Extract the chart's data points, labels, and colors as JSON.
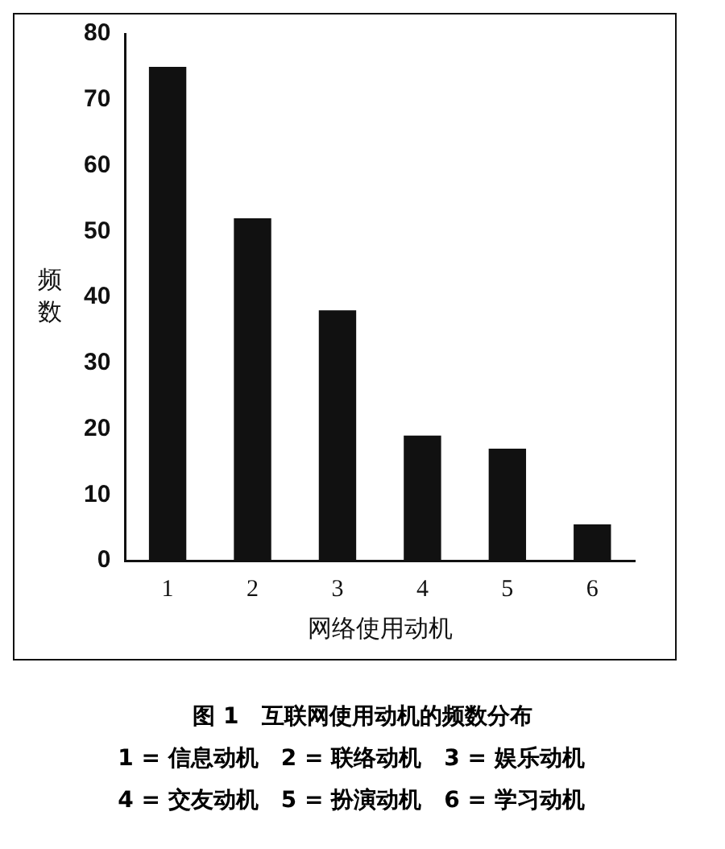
{
  "chart_data": {
    "type": "bar",
    "title": "图 1　互联网使用动机的频数分布",
    "xlabel": "网络使用动机",
    "ylabel": "频数",
    "categories": [
      "1",
      "2",
      "3",
      "4",
      "5",
      "6"
    ],
    "values": [
      75,
      52,
      38,
      19,
      17,
      5.5
    ],
    "color": "#111111",
    "ylim": [
      0,
      80
    ],
    "yticks": [
      0,
      10,
      20,
      30,
      40,
      50,
      60,
      70,
      80
    ],
    "grid": false,
    "legend": false,
    "annotations": [
      "1 = 信息动机　2 = 联络动机　3 = 娱乐动机",
      "4 = 交友动机　5 = 扮演动机　6 = 学习动机"
    ]
  }
}
